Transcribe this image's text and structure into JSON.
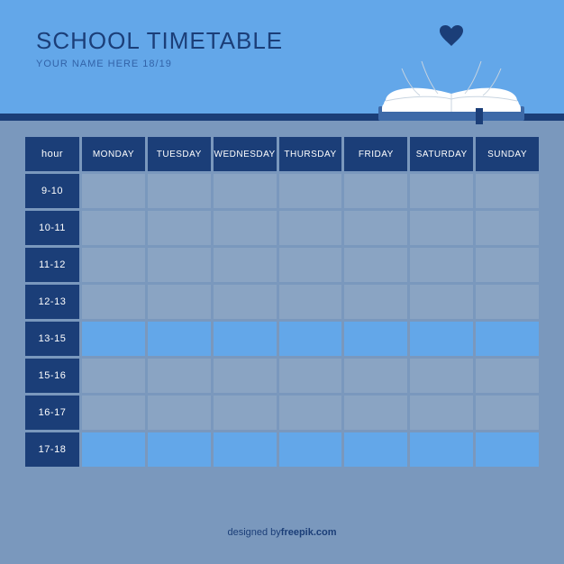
{
  "colors": {
    "header_bg": "#63a7e9",
    "title": "#1b3e78",
    "subtitle": "#3263a8",
    "divider": "#1b3e78",
    "grid_bg": "#7a98bd",
    "hour_cell_bg": "#1b3e78",
    "day_header_bg": "#1b3e78",
    "cell_grey": "#8aa4c3",
    "cell_blue": "#63a7e9",
    "footer_text": "#1b3e78",
    "heart_fill": "#1b3e78",
    "book_pages": "#ffffff",
    "book_base": "#3e6aa8",
    "bookmark": "#1b3e78"
  },
  "header": {
    "title": "SCHOOL TIMETABLE",
    "subtitle": "YOUR NAME HERE 18/19"
  },
  "timetable": {
    "corner_label": "hour",
    "days": [
      "MONDAY",
      "TUESDAY",
      "WEDNESDAY",
      "THURSDAY",
      "FRIDAY",
      "SATURDAY",
      "SUNDAY"
    ],
    "hours": [
      "9-10",
      "10-11",
      "11-12",
      "12-13",
      "13-15",
      "15-16",
      "16-17",
      "17-18"
    ],
    "row_color_keys": [
      "cell_grey",
      "cell_grey",
      "cell_grey",
      "cell_grey",
      "cell_blue",
      "cell_grey",
      "cell_grey",
      "cell_blue"
    ]
  },
  "footer": {
    "prefix": "designed by ",
    "brand": "freepik.com"
  }
}
